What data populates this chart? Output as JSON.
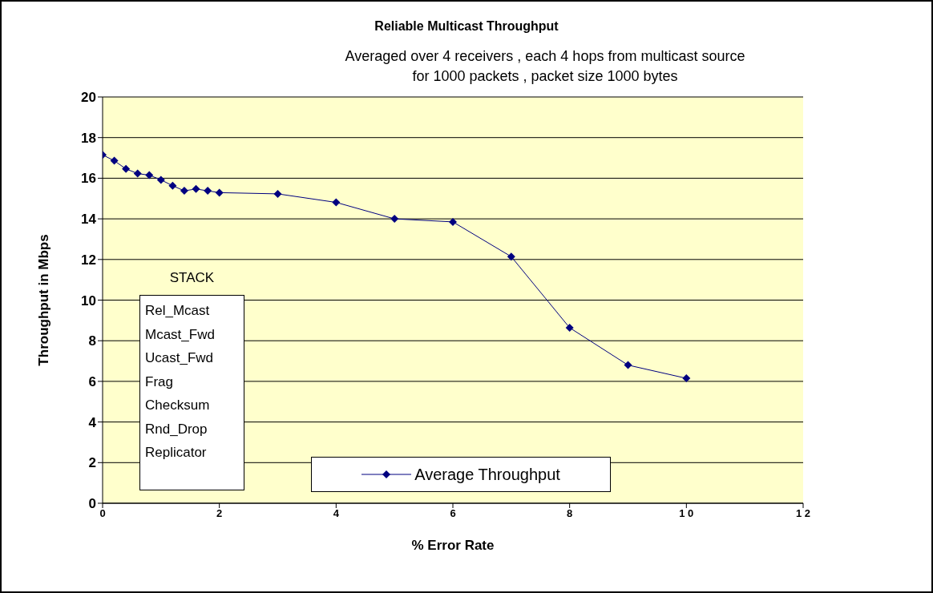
{
  "chart_data": {
    "type": "line",
    "title": "Reliable Multicast Throughput",
    "subtitle": "Averaged over 4 receivers , each 4 hops from multicast source\nfor 1000 packets , packet size 1000 bytes",
    "xlabel": "% Error Rate",
    "ylabel": "Throughput in Mbps",
    "x": [
      0,
      0.2,
      0.4,
      0.6,
      0.8,
      1,
      1.2,
      1.4,
      1.6,
      1.8,
      2,
      3,
      4,
      5,
      6,
      7,
      8,
      9,
      10
    ],
    "series": [
      {
        "name": "Average Throughput",
        "color": "#000080",
        "values": [
          17.15,
          16.86,
          16.46,
          16.23,
          16.15,
          15.92,
          15.63,
          15.38,
          15.47,
          15.38,
          15.29,
          15.23,
          14.81,
          14.0,
          13.85,
          12.14,
          8.64,
          6.8,
          6.15
        ]
      }
    ],
    "xlim": [
      0,
      12
    ],
    "xticks": [
      0,
      2,
      4,
      6,
      8,
      {
        "value": 10,
        "label": "1 0"
      },
      {
        "value": 12,
        "label": "1 2"
      }
    ],
    "ylim": [
      0,
      20
    ],
    "yticks": [
      0,
      2,
      4,
      6,
      8,
      10,
      12,
      14,
      16,
      18,
      20
    ],
    "annotations": [
      "STACK",
      "Rel_Mcast",
      "Mcast_Fwd",
      "Ucast_Fwd",
      "Frag",
      "Checksum",
      "Rnd_Drop",
      "Replicator"
    ],
    "grid": "y",
    "legend": "bottom",
    "marker": "diamond",
    "line_style": "solid"
  }
}
